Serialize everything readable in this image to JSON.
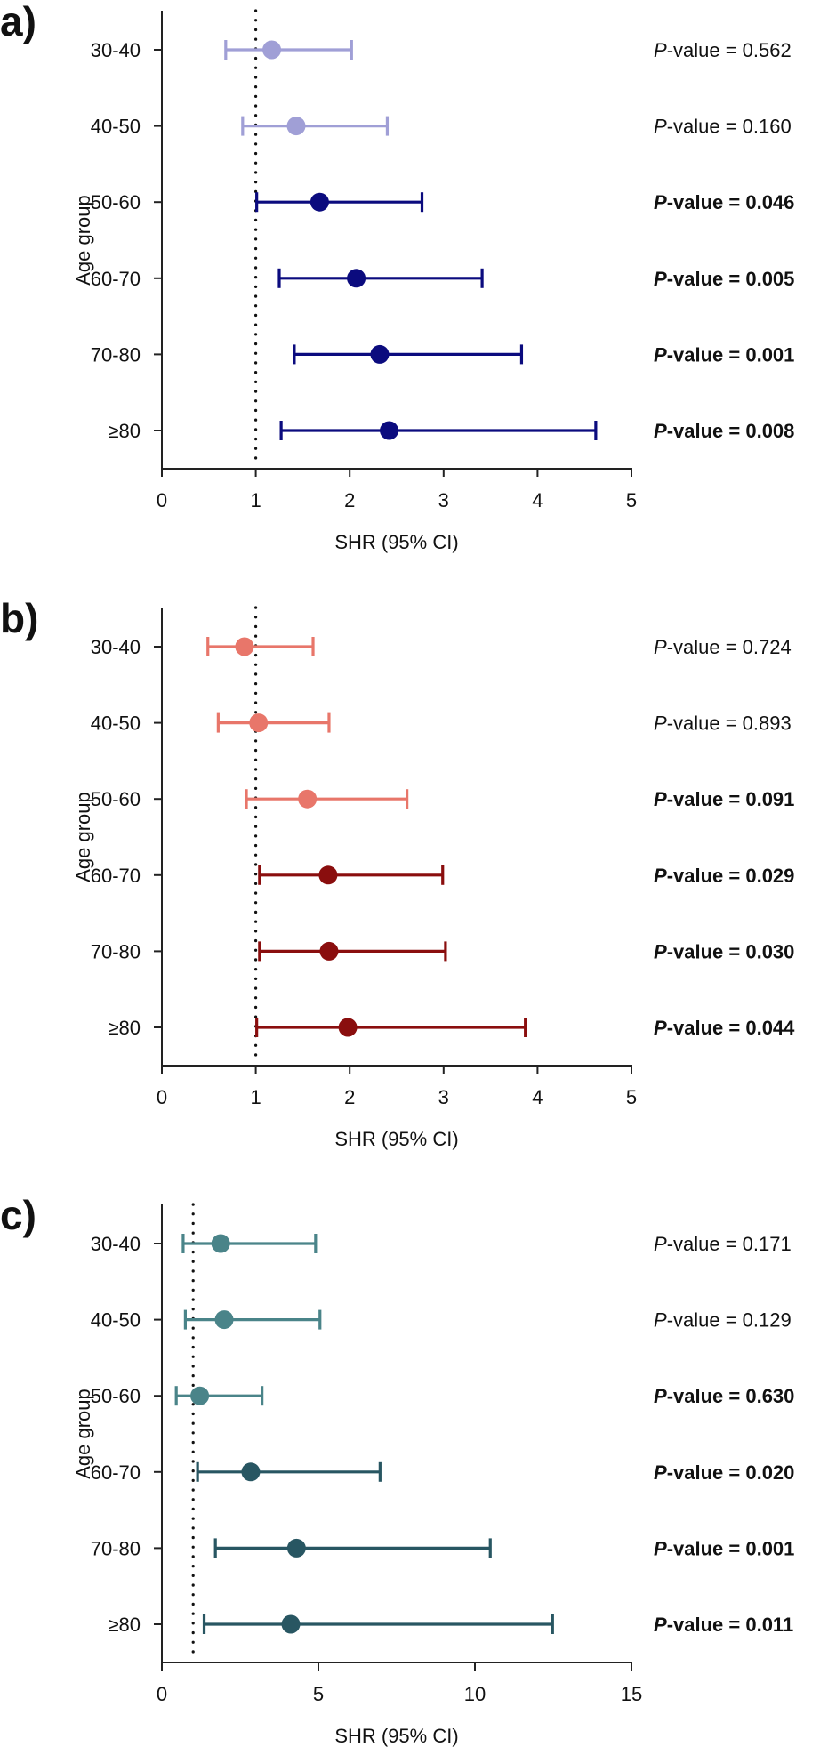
{
  "chart_data": [
    {
      "type": "forest",
      "panel_label": "a)",
      "ylabel": "Age group",
      "xlabel": "SHR (95% CI)",
      "xlim": [
        0,
        5
      ],
      "xticks": [
        "0",
        "1",
        "2",
        "3",
        "4",
        "5"
      ],
      "xtick_values": [
        0,
        1,
        2,
        3,
        4,
        5
      ],
      "reference_line": 1,
      "colors": {
        "nonsignificant": "#a09fd6",
        "significant": "#0b0b7e"
      },
      "rows": [
        {
          "group": "30-40",
          "shr": 1.17,
          "ci_low": 0.68,
          "ci_high": 2.02,
          "p_prefix": "P",
          "p_text": "-value = 0.562",
          "bold": false,
          "significant": false
        },
        {
          "group": "40-50",
          "shr": 1.43,
          "ci_low": 0.86,
          "ci_high": 2.4,
          "p_prefix": "P",
          "p_text": "-value = 0.160",
          "bold": false,
          "significant": false
        },
        {
          "group": "50-60",
          "shr": 1.68,
          "ci_low": 1.01,
          "ci_high": 2.77,
          "p_prefix": "P",
          "p_text": "-value = 0.046",
          "bold": true,
          "significant": true
        },
        {
          "group": "60-70",
          "shr": 2.07,
          "ci_low": 1.25,
          "ci_high": 3.41,
          "p_prefix": "P",
          "p_text": "-value = 0.005",
          "bold": true,
          "significant": true
        },
        {
          "group": "70-80",
          "shr": 2.32,
          "ci_low": 1.41,
          "ci_high": 3.83,
          "p_prefix": "P",
          "p_text": "-value = 0.001",
          "bold": true,
          "significant": true
        },
        {
          "group": "≥80",
          "shr": 2.42,
          "ci_low": 1.27,
          "ci_high": 4.62,
          "p_prefix": "P",
          "p_text": "-value = 0.008",
          "bold": true,
          "significant": true
        }
      ]
    },
    {
      "type": "forest",
      "panel_label": "b)",
      "ylabel": "Age group",
      "xlabel": "SHR (95% CI)",
      "xlim": [
        0,
        5
      ],
      "xticks": [
        "0",
        "1",
        "2",
        "3",
        "4",
        "5"
      ],
      "xtick_values": [
        0,
        1,
        2,
        3,
        4,
        5
      ],
      "reference_line": 1,
      "colors": {
        "nonsignificant": "#e8766a",
        "significant": "#8a0e0e"
      },
      "rows": [
        {
          "group": "30-40",
          "shr": 0.88,
          "ci_low": 0.49,
          "ci_high": 1.61,
          "p_prefix": "P",
          "p_text": "-value = 0.724",
          "bold": false,
          "significant": false
        },
        {
          "group": "40-50",
          "shr": 1.03,
          "ci_low": 0.6,
          "ci_high": 1.78,
          "p_prefix": "P",
          "p_text": "-value = 0.893",
          "bold": false,
          "significant": false
        },
        {
          "group": "50-60",
          "shr": 1.55,
          "ci_low": 0.9,
          "ci_high": 2.61,
          "p_prefix": "P",
          "p_text": "-value = 0.091",
          "bold": true,
          "significant": false
        },
        {
          "group": "60-70",
          "shr": 1.77,
          "ci_low": 1.04,
          "ci_high": 2.99,
          "p_prefix": "P",
          "p_text": "-value = 0.029",
          "bold": true,
          "significant": true
        },
        {
          "group": "70-80",
          "shr": 1.78,
          "ci_low": 1.04,
          "ci_high": 3.02,
          "p_prefix": "P",
          "p_text": "-value = 0.030",
          "bold": true,
          "significant": true
        },
        {
          "group": "≥80",
          "shr": 1.98,
          "ci_low": 1.01,
          "ci_high": 3.87,
          "p_prefix": "P",
          "p_text": "-value = 0.044",
          "bold": true,
          "significant": true
        }
      ]
    },
    {
      "type": "forest",
      "panel_label": "c)",
      "ylabel": "Age group",
      "xlabel": "SHR (95% CI)",
      "xlim": [
        0,
        15
      ],
      "xticks": [
        "0",
        "5",
        "10",
        "15"
      ],
      "xtick_values": [
        0,
        5,
        10,
        15
      ],
      "reference_line": 1,
      "colors": {
        "nonsignificant": "#4a8489",
        "significant": "#285662"
      },
      "rows": [
        {
          "group": "30-40",
          "shr": 1.88,
          "ci_low": 0.68,
          "ci_high": 4.91,
          "p_prefix": "P",
          "p_text": "-value = 0.171",
          "bold": false,
          "significant": false
        },
        {
          "group": "40-50",
          "shr": 1.99,
          "ci_low": 0.75,
          "ci_high": 5.05,
          "p_prefix": "P",
          "p_text": "-value = 0.129",
          "bold": false,
          "significant": false
        },
        {
          "group": "50-60",
          "shr": 1.21,
          "ci_low": 0.46,
          "ci_high": 3.2,
          "p_prefix": "P",
          "p_text": "-value = 0.630",
          "bold": true,
          "significant": false
        },
        {
          "group": "60-70",
          "shr": 2.84,
          "ci_low": 1.14,
          "ci_high": 6.97,
          "p_prefix": "P",
          "p_text": "-value = 0.020",
          "bold": true,
          "significant": true
        },
        {
          "group": "70-80",
          "shr": 4.3,
          "ci_low": 1.71,
          "ci_high": 10.49,
          "p_prefix": "P",
          "p_text": "-value = 0.001",
          "bold": true,
          "significant": true
        },
        {
          "group": "≥80",
          "shr": 4.12,
          "ci_low": 1.35,
          "ci_high": 12.48,
          "p_prefix": "P",
          "p_text": "-value = 0.011",
          "bold": true,
          "significant": true
        }
      ]
    }
  ]
}
